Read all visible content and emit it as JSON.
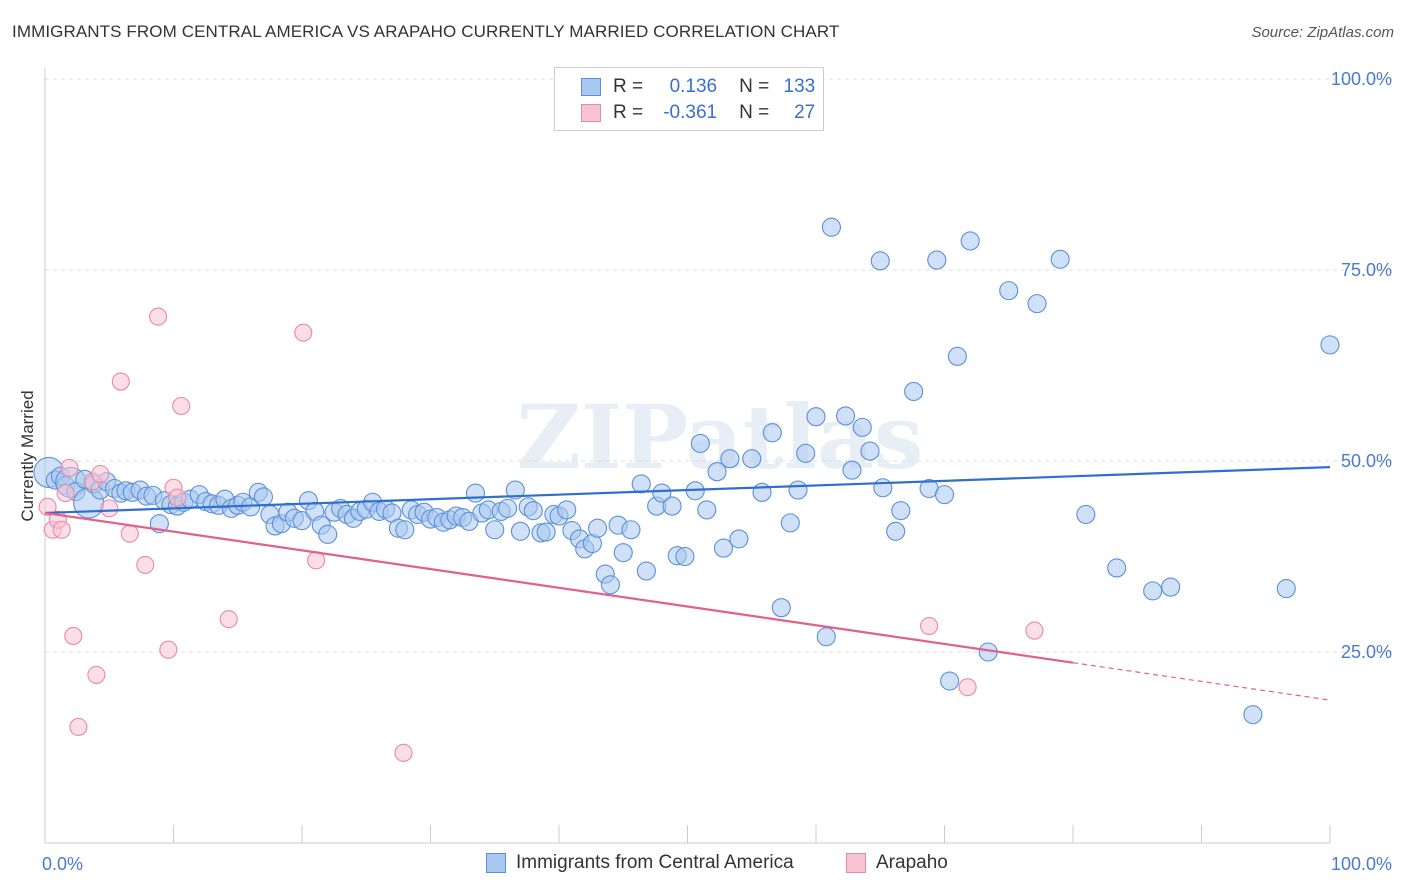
{
  "title": "IMMIGRANTS FROM CENTRAL AMERICA VS ARAPAHO CURRENTLY MARRIED CORRELATION CHART",
  "source": "Source: ZipAtlas.com",
  "watermark": "ZIPatlas",
  "legend": {
    "r_label": "R =",
    "n_label": "N =",
    "rows": [
      {
        "r": "0.136",
        "n": "133",
        "color": "#a9c8f0",
        "border": "#5b8fd8"
      },
      {
        "r": "-0.361",
        "n": "27",
        "color": "#f7c3d3",
        "border": "#e58aa8"
      }
    ]
  },
  "chart_data": {
    "type": "scatter",
    "xlabel": "",
    "ylabel": "Currently Married",
    "xlim": [
      0,
      100
    ],
    "ylim": [
      0,
      100
    ],
    "y_ticks": [
      "100.0%",
      "75.0%",
      "50.0%",
      "25.0%"
    ],
    "y_tick_values": [
      100,
      75,
      50,
      25
    ],
    "x_ticks": [
      "0.0%",
      "100.0%"
    ],
    "x_tick_values": [
      0,
      100
    ],
    "grid": "horizontal dashed",
    "legend_position": "bottom",
    "series": [
      {
        "name": "Immigrants from Central America",
        "color": "#a9c8f0",
        "stroke": "#5b8fd8",
        "line_color": "#2f6fce",
        "trend": {
          "x": [
            0,
            100
          ],
          "y": [
            43.2,
            49.2
          ]
        },
        "points": [
          [
            0.3,
            48.5
          ],
          [
            0.8,
            47.5
          ],
          [
            1.2,
            48.0
          ],
          [
            1.6,
            46.8
          ],
          [
            2.0,
            47.2
          ],
          [
            2.4,
            46.0
          ],
          [
            3.1,
            47.6
          ],
          [
            3.4,
            44.5
          ],
          [
            3.8,
            47.0
          ],
          [
            4.3,
            46.2
          ],
          [
            4.8,
            47.3
          ],
          [
            5.4,
            46.4
          ],
          [
            5.9,
            45.8
          ],
          [
            6.3,
            46.1
          ],
          [
            6.8,
            45.9
          ],
          [
            7.4,
            46.2
          ],
          [
            7.9,
            45.4
          ],
          [
            8.4,
            45.5
          ],
          [
            8.9,
            41.8
          ],
          [
            9.3,
            44.8
          ],
          [
            9.8,
            44.3
          ],
          [
            10.3,
            44.1
          ],
          [
            10.8,
            44.6
          ],
          [
            11.3,
            45.0
          ],
          [
            12.0,
            45.6
          ],
          [
            12.5,
            44.7
          ],
          [
            13.0,
            44.4
          ],
          [
            13.5,
            44.2
          ],
          [
            14.0,
            45.0
          ],
          [
            14.5,
            43.8
          ],
          [
            15.0,
            44.2
          ],
          [
            15.4,
            44.6
          ],
          [
            16.0,
            44.0
          ],
          [
            16.6,
            45.9
          ],
          [
            17.0,
            45.3
          ],
          [
            17.5,
            43.0
          ],
          [
            17.9,
            41.5
          ],
          [
            18.4,
            41.8
          ],
          [
            18.9,
            43.3
          ],
          [
            19.4,
            42.5
          ],
          [
            20.0,
            42.2
          ],
          [
            20.5,
            44.8
          ],
          [
            21.0,
            43.4
          ],
          [
            21.5,
            41.6
          ],
          [
            22.0,
            40.4
          ],
          [
            22.5,
            43.3
          ],
          [
            23.0,
            43.8
          ],
          [
            23.5,
            43.0
          ],
          [
            24.0,
            42.5
          ],
          [
            24.5,
            43.4
          ],
          [
            25.0,
            43.7
          ],
          [
            25.5,
            44.6
          ],
          [
            26.0,
            43.4
          ],
          [
            26.5,
            43.7
          ],
          [
            27.0,
            43.2
          ],
          [
            27.5,
            41.2
          ],
          [
            28.0,
            41.0
          ],
          [
            28.5,
            43.6
          ],
          [
            29.0,
            43.0
          ],
          [
            29.5,
            43.3
          ],
          [
            30.0,
            42.4
          ],
          [
            30.5,
            42.6
          ],
          [
            31.0,
            42.0
          ],
          [
            31.5,
            42.3
          ],
          [
            32.0,
            42.8
          ],
          [
            32.5,
            42.6
          ],
          [
            33.0,
            42.1
          ],
          [
            33.5,
            45.8
          ],
          [
            34.0,
            43.2
          ],
          [
            34.5,
            43.6
          ],
          [
            35.0,
            41.0
          ],
          [
            35.5,
            43.4
          ],
          [
            36.0,
            43.8
          ],
          [
            36.6,
            46.2
          ],
          [
            37.0,
            40.8
          ],
          [
            37.6,
            44.0
          ],
          [
            38.0,
            43.5
          ],
          [
            38.6,
            40.6
          ],
          [
            39.0,
            40.7
          ],
          [
            39.6,
            43.0
          ],
          [
            40.0,
            42.8
          ],
          [
            40.6,
            43.6
          ],
          [
            41.0,
            40.9
          ],
          [
            41.6,
            39.8
          ],
          [
            42.0,
            38.5
          ],
          [
            42.6,
            39.2
          ],
          [
            43.0,
            41.2
          ],
          [
            43.6,
            35.2
          ],
          [
            44.0,
            33.8
          ],
          [
            44.6,
            41.6
          ],
          [
            45.0,
            38.0
          ],
          [
            45.6,
            41.0
          ],
          [
            46.4,
            47.0
          ],
          [
            46.8,
            35.6
          ],
          [
            47.6,
            44.1
          ],
          [
            48.0,
            45.8
          ],
          [
            48.8,
            44.1
          ],
          [
            49.2,
            37.6
          ],
          [
            49.8,
            37.5
          ],
          [
            50.6,
            46.1
          ],
          [
            51.0,
            52.3
          ],
          [
            51.5,
            43.6
          ],
          [
            52.3,
            48.6
          ],
          [
            52.8,
            38.6
          ],
          [
            53.3,
            50.3
          ],
          [
            54.0,
            39.8
          ],
          [
            55.0,
            50.3
          ],
          [
            55.8,
            45.9
          ],
          [
            56.6,
            53.7
          ],
          [
            57.3,
            30.8
          ],
          [
            58.0,
            41.9
          ],
          [
            58.6,
            46.2
          ],
          [
            59.2,
            51.0
          ],
          [
            60.0,
            55.8
          ],
          [
            60.8,
            27.0
          ],
          [
            61.2,
            80.6
          ],
          [
            62.3,
            55.9
          ],
          [
            62.8,
            48.8
          ],
          [
            63.6,
            54.4
          ],
          [
            64.2,
            51.3
          ],
          [
            65.0,
            76.2
          ],
          [
            65.2,
            46.5
          ],
          [
            66.2,
            40.8
          ],
          [
            66.6,
            43.5
          ],
          [
            67.6,
            59.1
          ],
          [
            68.8,
            46.4
          ],
          [
            69.4,
            76.3
          ],
          [
            70.0,
            45.6
          ],
          [
            70.4,
            21.2
          ],
          [
            71.0,
            63.7
          ],
          [
            72.0,
            78.8
          ],
          [
            73.4,
            25.0
          ],
          [
            75.0,
            72.3
          ],
          [
            77.2,
            70.6
          ],
          [
            79.0,
            76.4
          ],
          [
            81.0,
            43.0
          ],
          [
            83.4,
            36.0
          ],
          [
            86.2,
            33.0
          ],
          [
            87.6,
            33.5
          ],
          [
            94.0,
            16.8
          ],
          [
            96.6,
            33.3
          ],
          [
            100.0,
            65.2
          ]
        ],
        "big_points": [
          [
            0.3,
            48.5
          ],
          [
            2.0,
            47.2
          ],
          [
            3.4,
            44.5
          ]
        ]
      },
      {
        "name": "Arapaho",
        "color": "#f7c3d3",
        "stroke": "#e58aa8",
        "line_color": "#e0608e",
        "trend": {
          "x": [
            0,
            80
          ],
          "y": [
            43.2,
            23.6
          ]
        },
        "trend_dashed": {
          "x": [
            80,
            100
          ],
          "y": [
            23.6,
            18.7
          ]
        },
        "points": [
          [
            0.2,
            44.0
          ],
          [
            0.6,
            41.0
          ],
          [
            1.0,
            42.3
          ],
          [
            1.3,
            41.0
          ],
          [
            1.6,
            45.8
          ],
          [
            1.9,
            49.1
          ],
          [
            2.2,
            27.1
          ],
          [
            2.6,
            15.2
          ],
          [
            3.7,
            47.3
          ],
          [
            4.0,
            22.0
          ],
          [
            4.3,
            48.3
          ],
          [
            5.0,
            43.8
          ],
          [
            5.9,
            60.4
          ],
          [
            6.6,
            40.5
          ],
          [
            7.8,
            36.4
          ],
          [
            8.8,
            68.9
          ],
          [
            9.6,
            25.3
          ],
          [
            10.0,
            46.5
          ],
          [
            10.3,
            45.2
          ],
          [
            10.6,
            57.2
          ],
          [
            14.3,
            29.3
          ],
          [
            20.1,
            66.8
          ],
          [
            21.1,
            37.0
          ],
          [
            27.9,
            11.8
          ],
          [
            68.8,
            28.4
          ],
          [
            71.8,
            20.4
          ],
          [
            77.0,
            27.8
          ]
        ]
      }
    ]
  },
  "bottom_legend": [
    "Immigrants from Central America",
    "Arapaho"
  ]
}
